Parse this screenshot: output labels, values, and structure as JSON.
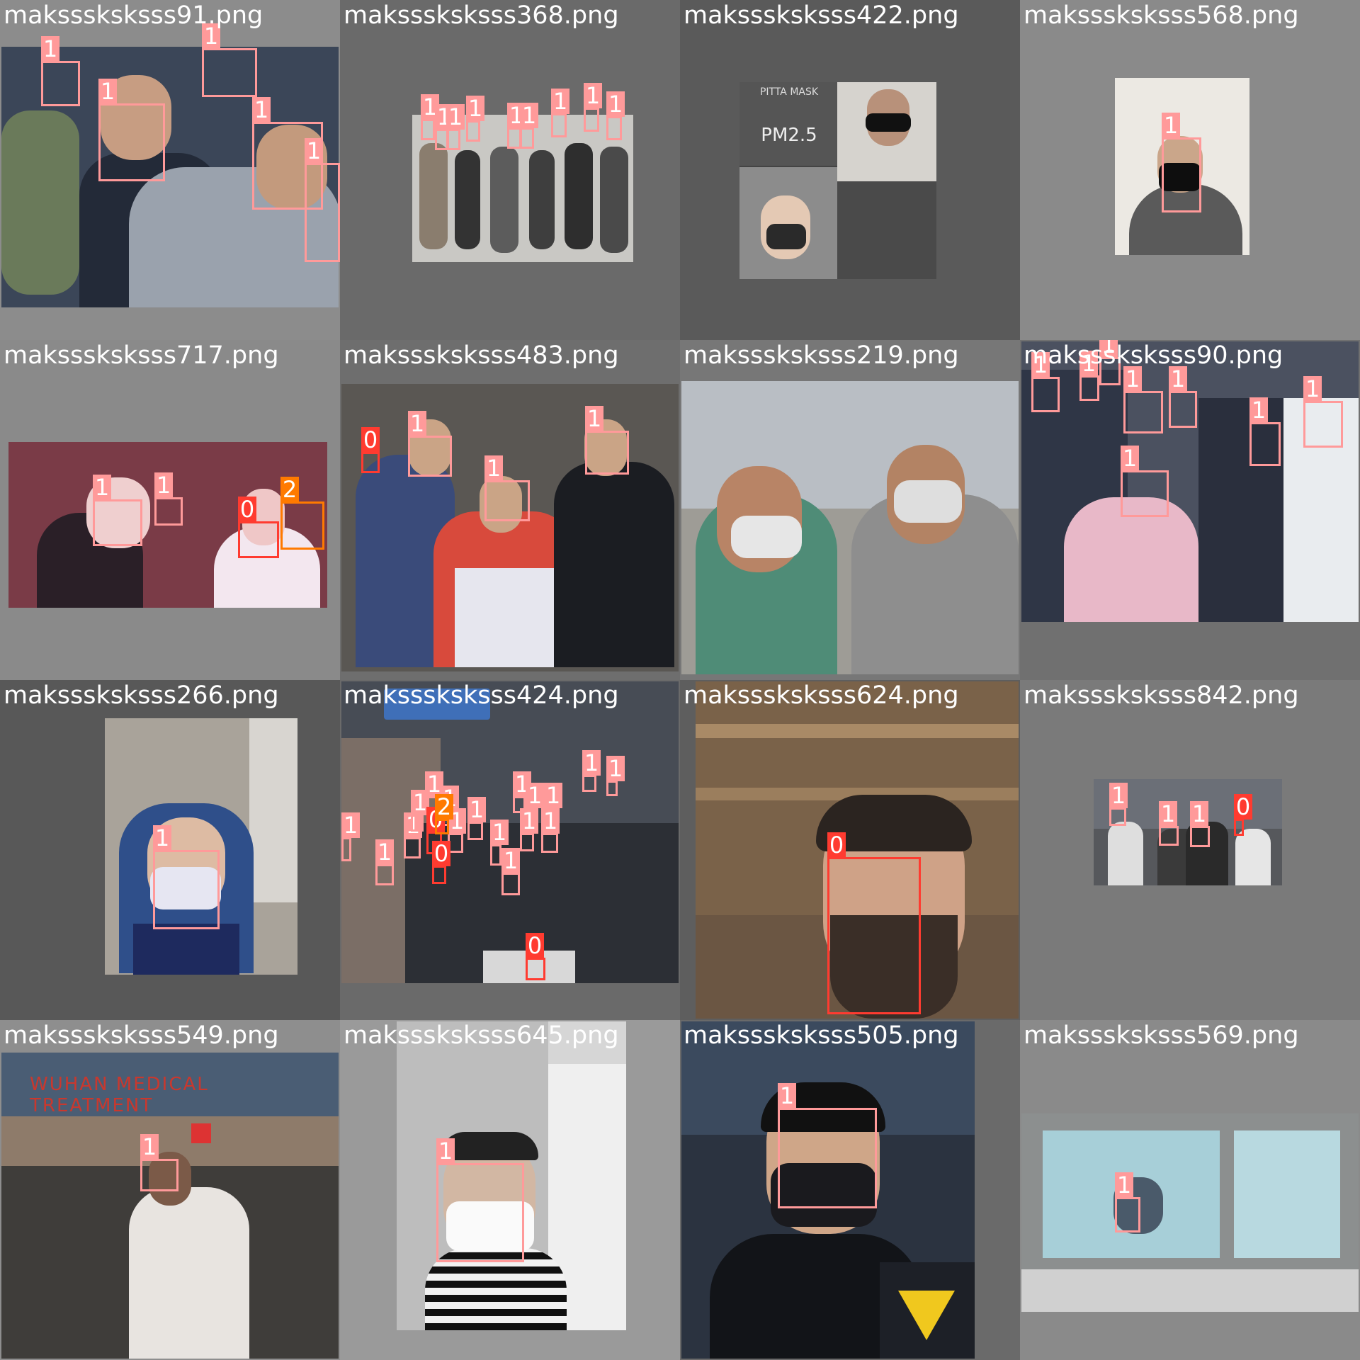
{
  "palette": {
    "class_0": "#ff3b30",
    "class_1": "#ff9a9a",
    "class_2": "#ff7a00",
    "caption_text": "#ffffff"
  },
  "tiles": [
    {
      "caption": "maksssksksss91.png",
      "bg": "#8c8c8c",
      "photo": "#3b4658",
      "boxes": [
        "1",
        "1",
        "1",
        "1",
        "1"
      ]
    },
    {
      "caption": "maksssksksss368.png",
      "bg": "#6a6a6a",
      "photo": "#c9c8c4",
      "boxes": [
        "1",
        "1",
        "1",
        "1",
        "1",
        "1",
        "1",
        "1",
        "1"
      ]
    },
    {
      "caption": "maksssksksss422.png",
      "bg": "#5a5a5a",
      "photo": "#444444",
      "boxes": []
    },
    {
      "caption": "maksssksksss568.png",
      "bg": "#8a8a8a",
      "photo": "#ece9e3",
      "boxes": [
        "1"
      ]
    },
    {
      "caption": "maksssksksss717.png",
      "bg": "#8a8a8a",
      "photo": "#7a3b47",
      "boxes": [
        "1",
        "1",
        "0",
        "2"
      ]
    },
    {
      "caption": "maksssksksss483.png",
      "bg": "#6e6e6e",
      "photo": "#5a5753",
      "boxes": [
        "0",
        "1",
        "1",
        "1"
      ]
    },
    {
      "caption": "maksssksksss219.png",
      "bg": "#777777",
      "photo": "#9e9c96",
      "boxes": []
    },
    {
      "caption": "maksssksksss90.png",
      "bg": "#707070",
      "photo": "#4b5160",
      "boxes": [
        "1",
        "1",
        "1",
        "1",
        "1",
        "1",
        "1",
        "1"
      ]
    },
    {
      "caption": "maksssksksss266.png",
      "bg": "#585858",
      "photo": "#b5aea4",
      "boxes": [
        "1"
      ]
    },
    {
      "caption": "maksssksksss424.png",
      "bg": "#6a6a6a",
      "photo": "#474c55",
      "boxes": [
        "1",
        "1",
        "1",
        "1",
        "1",
        "1",
        "0",
        "1",
        "2",
        "0",
        "1",
        "1",
        "1",
        "1",
        "1",
        "1",
        "1",
        "1",
        "1",
        "1",
        "0"
      ]
    },
    {
      "caption": "maksssksksss624.png",
      "bg": "#5e5e5e",
      "photo": "#6b5643",
      "boxes": [
        "0"
      ]
    },
    {
      "caption": "maksssksksss842.png",
      "bg": "#7a7a7a",
      "photo": "#56585c",
      "boxes": [
        "1",
        "1",
        "1",
        "0"
      ]
    },
    {
      "caption": "maksssksksss549.png",
      "bg": "#8e8e8e",
      "photo": "#5e5a55",
      "boxes": [
        "1"
      ]
    },
    {
      "caption": "maksssksksss645.png",
      "bg": "#9a9a9a",
      "photo": "#d6d6d6",
      "boxes": [
        "1"
      ]
    },
    {
      "caption": "maksssksksss505.png",
      "bg": "#6a6a6a",
      "photo": "#2b3340",
      "boxes": [
        "1"
      ]
    },
    {
      "caption": "maksssksksss569.png",
      "bg": "#8a8a8a",
      "photo": "#c6c8c4",
      "boxes": [
        "1"
      ]
    }
  ],
  "signage": {
    "poster_en": "PITTA MASK",
    "poster_pm": "PM2.5",
    "hospital_en": "WUHAN MEDICAL TREATMENT"
  }
}
